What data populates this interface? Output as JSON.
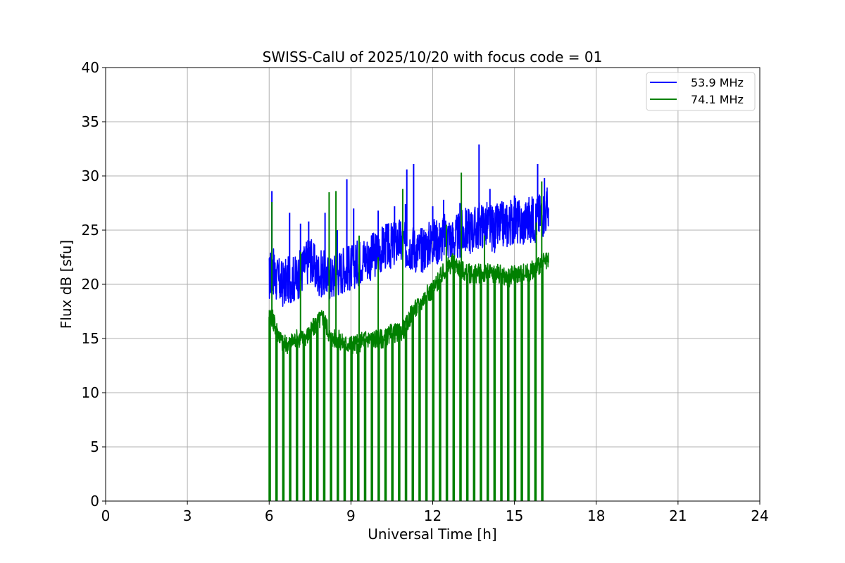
{
  "chart_data": {
    "type": "line",
    "title": "SWISS-CalU of 2025/10/20 with focus code = 01",
    "xlabel": "Universal Time [h]",
    "ylabel": "Flux dB [sfu]",
    "xlim": [
      0,
      24
    ],
    "ylim": [
      0,
      40
    ],
    "xticks": [
      0,
      3,
      6,
      9,
      12,
      15,
      18,
      21,
      24
    ],
    "yticks": [
      0,
      5,
      10,
      15,
      20,
      25,
      30,
      35,
      40
    ],
    "grid": true,
    "legend_position": "top-right",
    "series": [
      {
        "name": "53.9 MHz",
        "color": "#0000ff",
        "x": [
          6.0,
          6.1,
          6.25,
          6.5,
          6.75,
          7.0,
          7.25,
          7.5,
          7.75,
          8.0,
          8.25,
          8.5,
          8.75,
          9.0,
          9.25,
          9.5,
          9.75,
          10.0,
          10.25,
          10.5,
          10.75,
          11.0,
          11.25,
          11.5,
          11.75,
          12.0,
          12.25,
          12.5,
          12.75,
          13.0,
          13.25,
          13.5,
          13.75,
          14.0,
          14.25,
          14.5,
          14.75,
          15.0,
          15.25,
          15.5,
          15.75,
          16.0,
          16.25
        ],
        "values": [
          20.5,
          21.5,
          20.5,
          20.0,
          20.5,
          20.5,
          21.5,
          22.5,
          21.0,
          21.0,
          20.5,
          21.0,
          21.5,
          21.5,
          22.0,
          22.5,
          22.5,
          23.0,
          23.5,
          23.5,
          24.0,
          23.5,
          23.5,
          23.0,
          23.5,
          24.0,
          24.0,
          24.5,
          24.0,
          24.5,
          25.0,
          25.0,
          25.5,
          25.5,
          25.0,
          25.5,
          25.5,
          26.0,
          25.5,
          26.0,
          26.0,
          26.5,
          27.0
        ],
        "spikes": [
          {
            "x": 6.1,
            "y": 28.6
          },
          {
            "x": 6.75,
            "y": 26.6
          },
          {
            "x": 7.15,
            "y": 25.6
          },
          {
            "x": 7.45,
            "y": 25.8
          },
          {
            "x": 8.05,
            "y": 26.6
          },
          {
            "x": 8.5,
            "y": 25.0
          },
          {
            "x": 8.85,
            "y": 29.7
          },
          {
            "x": 9.1,
            "y": 27.0
          },
          {
            "x": 10.0,
            "y": 26.8
          },
          {
            "x": 10.6,
            "y": 27.2
          },
          {
            "x": 11.0,
            "y": 27.4
          },
          {
            "x": 11.05,
            "y": 30.6
          },
          {
            "x": 11.3,
            "y": 31.1
          },
          {
            "x": 12.0,
            "y": 27.2
          },
          {
            "x": 12.4,
            "y": 27.8
          },
          {
            "x": 13.0,
            "y": 27.5
          },
          {
            "x": 13.7,
            "y": 32.9
          },
          {
            "x": 14.1,
            "y": 28.8
          },
          {
            "x": 15.0,
            "y": 28.2
          },
          {
            "x": 15.85,
            "y": 31.1
          },
          {
            "x": 16.1,
            "y": 29.8
          }
        ]
      },
      {
        "name": "74.1 MHz",
        "color": "#008000",
        "x": [
          6.0,
          6.1,
          6.25,
          6.5,
          6.75,
          7.0,
          7.25,
          7.5,
          7.75,
          8.0,
          8.25,
          8.5,
          8.75,
          9.0,
          9.25,
          9.5,
          9.75,
          10.0,
          10.25,
          10.5,
          10.75,
          11.0,
          11.25,
          11.5,
          11.75,
          12.0,
          12.25,
          12.5,
          12.75,
          13.0,
          13.25,
          13.5,
          13.75,
          14.0,
          14.25,
          14.5,
          14.75,
          15.0,
          15.25,
          15.5,
          15.75,
          16.0,
          16.25
        ],
        "values": [
          17.0,
          17.0,
          16.0,
          14.5,
          14.5,
          15.0,
          15.0,
          15.5,
          16.5,
          17.0,
          15.0,
          15.0,
          14.5,
          14.5,
          14.5,
          15.0,
          15.0,
          15.0,
          15.0,
          15.5,
          15.5,
          16.0,
          17.5,
          18.0,
          19.0,
          19.5,
          20.5,
          21.5,
          22.0,
          21.5,
          21.0,
          21.0,
          21.0,
          21.0,
          21.0,
          21.0,
          20.5,
          21.0,
          21.0,
          21.0,
          21.5,
          22.0,
          22.0
        ],
        "spikes": [
          {
            "x": 6.1,
            "y": 27.6
          },
          {
            "x": 7.15,
            "y": 23.0
          },
          {
            "x": 8.2,
            "y": 28.5
          },
          {
            "x": 8.45,
            "y": 28.6
          },
          {
            "x": 9.3,
            "y": 24.5
          },
          {
            "x": 10.0,
            "y": 22.5
          },
          {
            "x": 10.9,
            "y": 28.8
          },
          {
            "x": 12.5,
            "y": 25.5
          },
          {
            "x": 13.05,
            "y": 30.3
          },
          {
            "x": 13.9,
            "y": 24.5
          },
          {
            "x": 15.8,
            "y": 25.7
          },
          {
            "x": 16.0,
            "y": 29.5
          }
        ],
        "drops_to": 0
      }
    ]
  }
}
